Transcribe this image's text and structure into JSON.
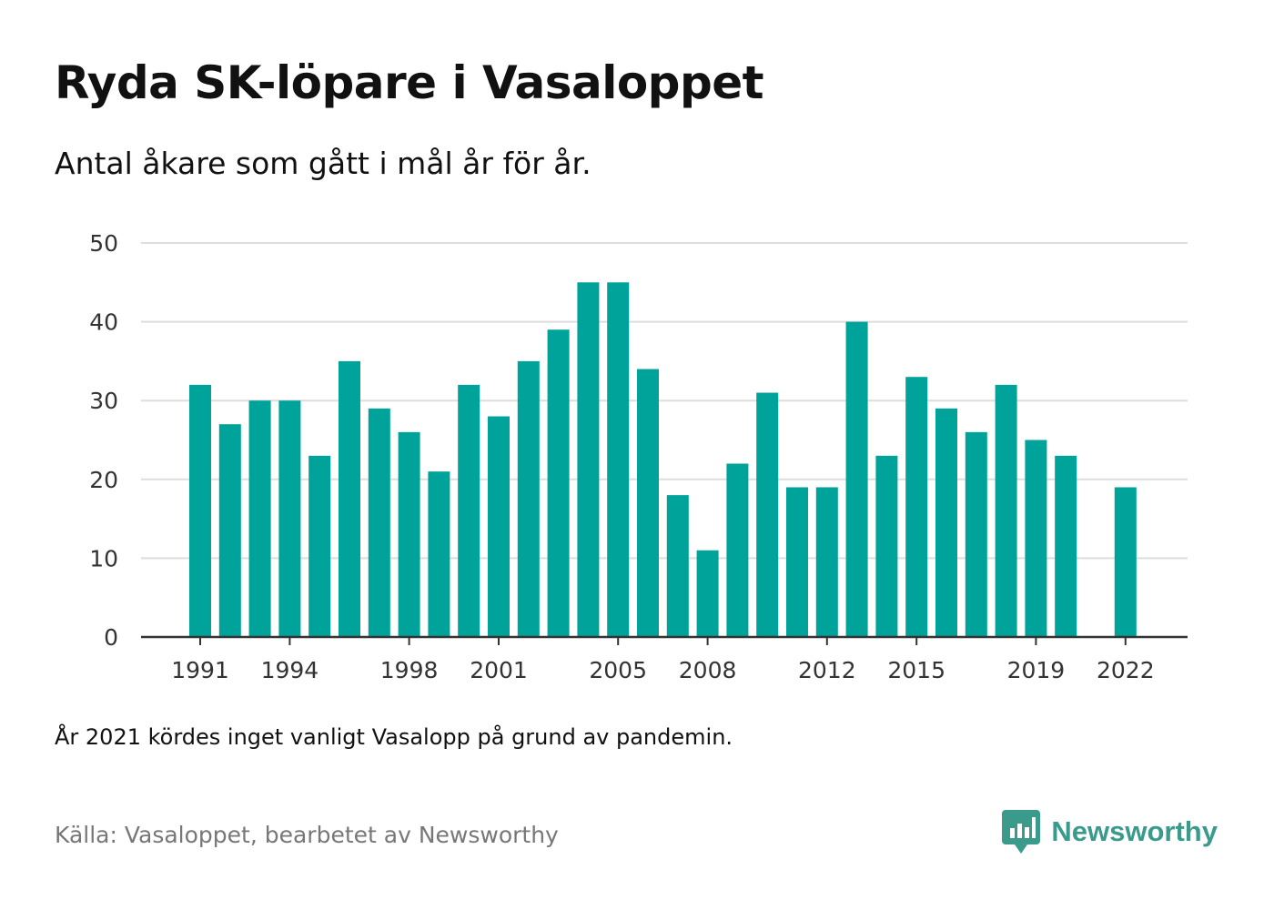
{
  "title": "Ryda SK-löpare i Vasaloppet",
  "subtitle": "Antal åkare som gått i mål år för år.",
  "note": "År 2021 kördes inget vanligt Vasalopp på grund av pandemin.",
  "source": "Källa: Vasaloppet, bearbetet av Newsworthy",
  "brand": {
    "name": "Newsworthy",
    "icon": "newsworthy-logo-icon",
    "color": "#3a9b8c"
  },
  "colors": {
    "bar": "#00a39a",
    "grid": "#dddddd",
    "axis": "#333333"
  },
  "chart_data": {
    "type": "bar",
    "title": "Ryda SK-löpare i Vasaloppet",
    "subtitle": "Antal åkare som gått i mål år för år.",
    "xlabel": "",
    "ylabel": "",
    "ylim": [
      0,
      50
    ],
    "yticks": [
      0,
      10,
      20,
      30,
      40,
      50
    ],
    "xticks": [
      "1991",
      "1994",
      "1998",
      "2001",
      "2005",
      "2008",
      "2012",
      "2015",
      "2019",
      "2022"
    ],
    "grid": true,
    "categories": [
      "1991",
      "1992",
      "1993",
      "1994",
      "1995",
      "1996",
      "1997",
      "1998",
      "1999",
      "2000",
      "2001",
      "2002",
      "2003",
      "2004",
      "2005",
      "2006",
      "2007",
      "2008",
      "2009",
      "2010",
      "2011",
      "2012",
      "2013",
      "2014",
      "2015",
      "2016",
      "2017",
      "2018",
      "2019",
      "2020",
      "2021",
      "2022"
    ],
    "values": [
      32,
      27,
      30,
      30,
      23,
      35,
      29,
      26,
      21,
      32,
      28,
      35,
      39,
      45,
      45,
      34,
      18,
      11,
      22,
      31,
      19,
      19,
      40,
      23,
      33,
      29,
      26,
      32,
      25,
      23,
      null,
      19
    ]
  }
}
